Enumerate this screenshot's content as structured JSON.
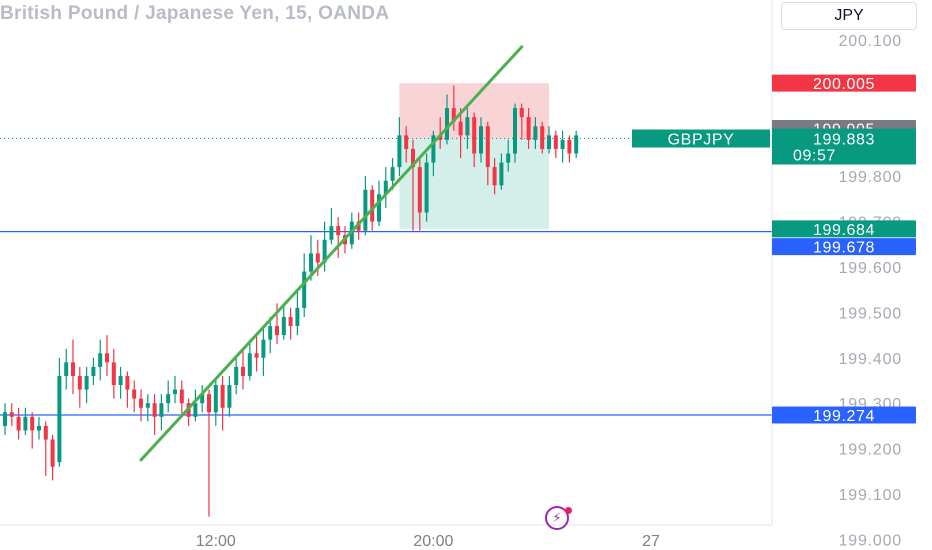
{
  "header": {
    "title": "British Pound / Japanese Yen, 15, OANDA",
    "currency": "JPY"
  },
  "colors": {
    "up": "#089981",
    "down": "#f23645",
    "trendline": "#4caf50",
    "hline": "#2962ff",
    "stop_zone": "#f7c6ca",
    "target_zone": "#cdebe5",
    "stop_tag": "#f23645",
    "grey_tag": "#787b86",
    "current_tag": "#089981",
    "hline_tag": "#2962ff"
  },
  "chart_data": {
    "type": "candlestick",
    "symbol": "GBPJPY",
    "ylim": [
      198.95,
      200.15
    ],
    "y_ticks": [
      "200.100",
      "199.800",
      "199.700",
      "199.600",
      "199.500",
      "199.400",
      "199.300",
      "199.200",
      "199.100",
      "199.000"
    ],
    "x_ticks": [
      {
        "label": "12:00",
        "index": 31
      },
      {
        "label": "20:00",
        "index": 63
      },
      {
        "label": "27",
        "index": 95
      }
    ],
    "candles": [
      [
        199.25,
        199.28,
        199.3,
        199.23
      ],
      [
        199.28,
        199.27,
        199.3,
        199.25
      ],
      [
        199.27,
        199.24,
        199.29,
        199.22
      ],
      [
        199.24,
        199.27,
        199.29,
        199.23
      ],
      [
        199.27,
        199.24,
        199.28,
        199.2
      ],
      [
        199.24,
        199.25,
        199.27,
        199.22
      ],
      [
        199.25,
        199.22,
        199.26,
        199.14
      ],
      [
        199.22,
        199.16,
        199.23,
        199.13
      ],
      [
        199.17,
        199.36,
        199.4,
        199.16
      ],
      [
        199.36,
        199.39,
        199.42,
        199.33
      ],
      [
        199.39,
        199.36,
        199.44,
        199.32
      ],
      [
        199.36,
        199.33,
        199.38,
        199.29
      ],
      [
        199.33,
        199.36,
        199.38,
        199.3
      ],
      [
        199.36,
        199.38,
        199.4,
        199.34
      ],
      [
        199.38,
        199.41,
        199.44,
        199.35
      ],
      [
        199.41,
        199.39,
        199.45,
        199.36
      ],
      [
        199.39,
        199.34,
        199.42,
        199.31
      ],
      [
        199.34,
        199.36,
        199.38,
        199.31
      ],
      [
        199.36,
        199.33,
        199.37,
        199.29
      ],
      [
        199.33,
        199.31,
        199.35,
        199.28
      ],
      [
        199.31,
        199.29,
        199.33,
        199.26
      ],
      [
        199.29,
        199.3,
        199.32,
        199.26
      ],
      [
        199.3,
        199.27,
        199.32,
        199.23
      ],
      [
        199.27,
        199.3,
        199.32,
        199.24
      ],
      [
        199.3,
        199.32,
        199.35,
        199.28
      ],
      [
        199.32,
        199.33,
        199.36,
        199.3
      ],
      [
        199.33,
        199.3,
        199.35,
        199.27
      ],
      [
        199.3,
        199.27,
        199.31,
        199.25
      ],
      [
        199.27,
        199.3,
        199.33,
        199.26
      ],
      [
        199.3,
        199.32,
        199.34,
        199.28
      ],
      [
        199.32,
        199.28,
        199.33,
        199.05
      ],
      [
        199.28,
        199.34,
        199.35,
        199.25
      ],
      [
        199.34,
        199.29,
        199.36,
        199.24
      ],
      [
        199.29,
        199.34,
        199.36,
        199.27
      ],
      [
        199.34,
        199.38,
        199.4,
        199.32
      ],
      [
        199.38,
        199.36,
        199.42,
        199.33
      ],
      [
        199.36,
        199.41,
        199.44,
        199.35
      ],
      [
        199.41,
        199.4,
        199.45,
        199.37
      ],
      [
        199.4,
        199.44,
        199.47,
        199.36
      ],
      [
        199.44,
        199.47,
        199.49,
        199.41
      ],
      [
        199.47,
        199.45,
        199.52,
        199.43
      ],
      [
        199.45,
        199.49,
        199.52,
        199.44
      ],
      [
        199.49,
        199.47,
        199.51,
        199.44
      ],
      [
        199.47,
        199.51,
        199.55,
        199.45
      ],
      [
        199.51,
        199.59,
        199.63,
        199.49
      ],
      [
        199.59,
        199.63,
        199.67,
        199.57
      ],
      [
        199.63,
        199.61,
        199.66,
        199.58
      ],
      [
        199.61,
        199.66,
        199.7,
        199.59
      ],
      [
        199.66,
        199.69,
        199.73,
        199.65
      ],
      [
        199.69,
        199.67,
        199.71,
        199.62
      ],
      [
        199.67,
        199.65,
        199.69,
        199.63
      ],
      [
        199.65,
        199.7,
        199.72,
        199.64
      ],
      [
        199.7,
        199.68,
        199.72,
        199.66
      ],
      [
        199.68,
        199.77,
        199.8,
        199.67
      ],
      [
        199.77,
        199.7,
        199.78,
        199.68
      ],
      [
        199.7,
        199.76,
        199.79,
        199.69
      ],
      [
        199.76,
        199.79,
        199.82,
        199.73
      ],
      [
        199.79,
        199.82,
        199.84,
        199.77
      ],
      [
        199.82,
        199.89,
        199.93,
        199.8
      ],
      [
        199.89,
        199.86,
        199.91,
        199.83
      ],
      [
        199.86,
        199.82,
        199.88,
        199.68
      ],
      [
        199.82,
        199.72,
        199.84,
        199.68
      ],
      [
        199.72,
        199.83,
        199.85,
        199.7
      ],
      [
        199.83,
        199.89,
        199.9,
        199.8
      ],
      [
        199.89,
        199.88,
        199.93,
        199.86
      ],
      [
        199.88,
        199.95,
        199.98,
        199.87
      ],
      [
        199.95,
        199.92,
        200.0,
        199.9
      ],
      [
        199.92,
        199.89,
        199.95,
        199.84
      ],
      [
        199.89,
        199.93,
        199.95,
        199.86
      ],
      [
        199.93,
        199.85,
        199.94,
        199.82
      ],
      [
        199.85,
        199.91,
        199.93,
        199.83
      ],
      [
        199.91,
        199.82,
        199.92,
        199.78
      ],
      [
        199.82,
        199.78,
        199.84,
        199.76
      ],
      [
        199.78,
        199.83,
        199.85,
        199.77
      ],
      [
        199.83,
        199.85,
        199.88,
        199.81
      ],
      [
        199.85,
        199.95,
        199.96,
        199.83
      ],
      [
        199.95,
        199.93,
        199.96,
        199.88
      ],
      [
        199.93,
        199.88,
        199.95,
        199.86
      ],
      [
        199.88,
        199.91,
        199.93,
        199.86
      ],
      [
        199.91,
        199.86,
        199.92,
        199.85
      ],
      [
        199.86,
        199.89,
        199.91,
        199.85
      ],
      [
        199.89,
        199.86,
        199.9,
        199.84
      ],
      [
        199.86,
        199.88,
        199.9,
        199.83
      ],
      [
        199.88,
        199.85,
        199.89,
        199.83
      ],
      [
        199.85,
        199.89,
        199.9,
        199.84
      ]
    ],
    "trendline": {
      "from": {
        "index": 20,
        "price": 199.175
      },
      "to": {
        "index": 76,
        "price": 200.085
      }
    },
    "horizontal_lines": [
      199.678,
      199.274
    ],
    "position_zones": {
      "from_index": 58,
      "to_index": 80,
      "stop": {
        "from": 200.005,
        "to": 199.883
      },
      "target": {
        "from": 199.883,
        "to": 199.684
      }
    },
    "dotted_price_line": 199.883,
    "price_tags": {
      "stop": "200.005",
      "grey": "199.905",
      "symbol": "GBPJPY",
      "current": "199.883",
      "countdown": "09:57",
      "target": "199.684",
      "hline_upper": "199.678",
      "hline_lower": "199.274"
    }
  }
}
